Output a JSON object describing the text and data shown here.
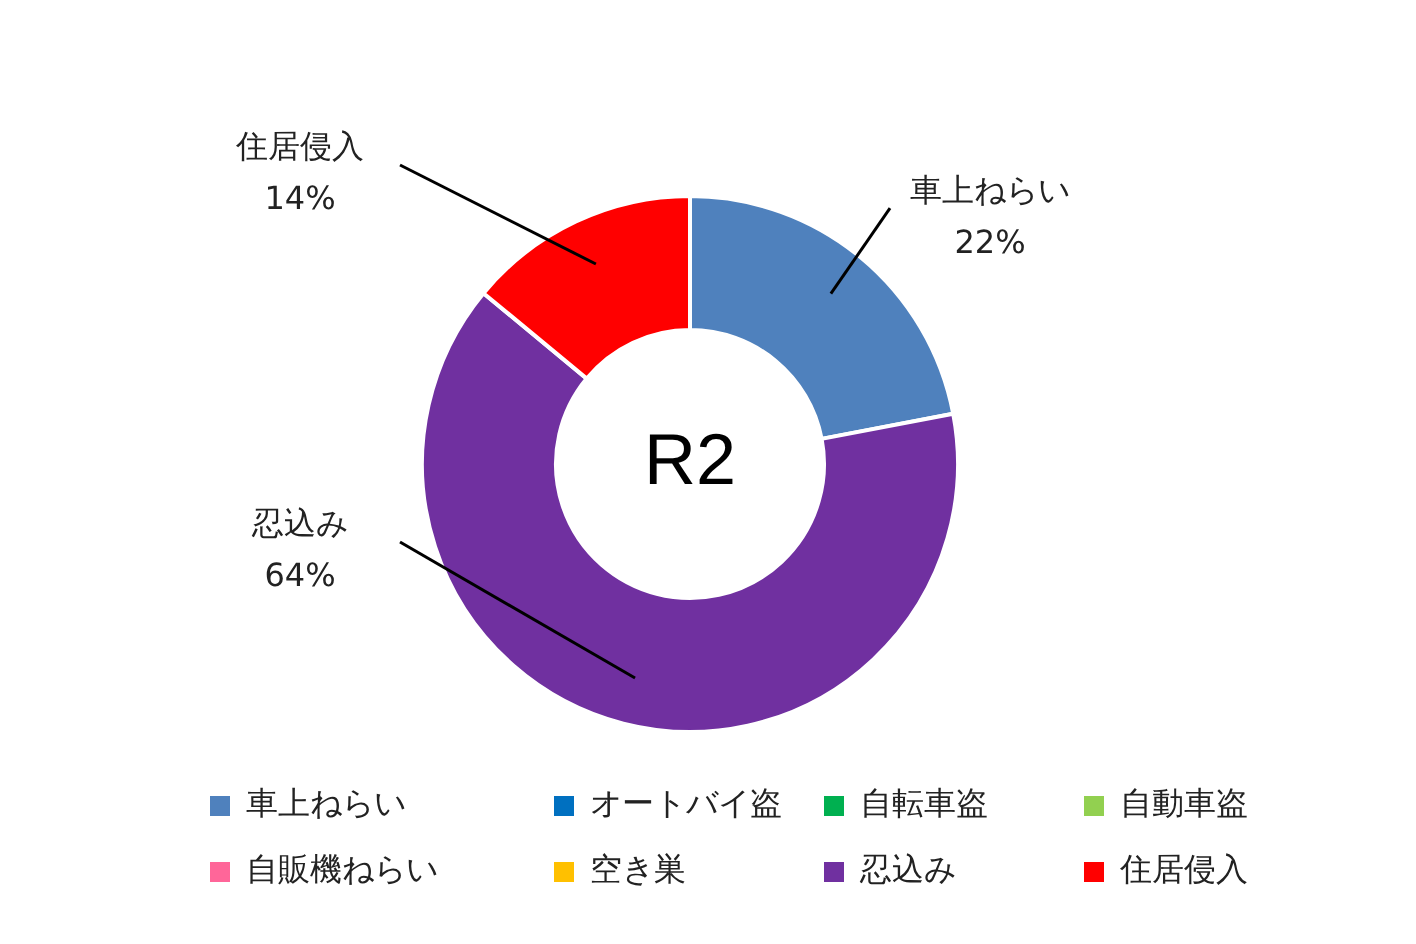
{
  "chart_data": {
    "type": "donut",
    "categories": [
      "車上ねらい",
      "オートバイ盗",
      "自転車盗",
      "自動車盗",
      "自販機ねらい",
      "空き巣",
      "忍込み",
      "住居侵入"
    ],
    "values": [
      22,
      0,
      0,
      0,
      0,
      0,
      64,
      14
    ],
    "colors": [
      "#4f81bd",
      "#0070c0",
      "#00b050",
      "#92d050",
      "#ff6699",
      "#ffc000",
      "#7030a0",
      "#ff0000"
    ],
    "annotations": [
      "R2"
    ],
    "value_labels": [
      "22%",
      null,
      null,
      null,
      null,
      null,
      "64%",
      "14%"
    ],
    "legend": "bottom"
  }
}
